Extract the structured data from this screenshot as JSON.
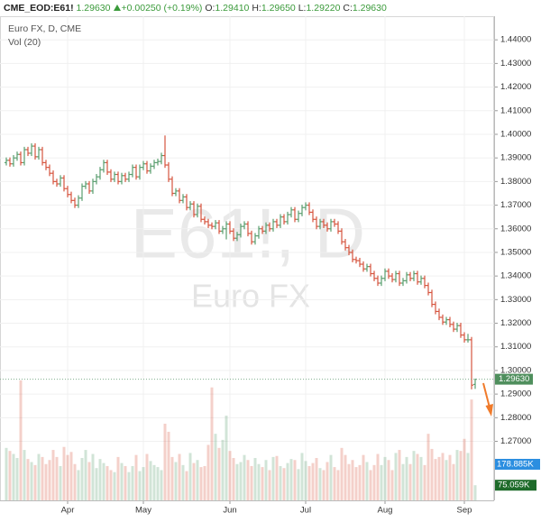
{
  "header": {
    "symbol": "CME_EOD:E61!",
    "last": "1.29630",
    "change": "+0.00250 (+0.19%)",
    "o_label": "O:",
    "o": "1.29410",
    "h_label": "H:",
    "h": "1.29650",
    "l_label": "L:",
    "l": "1.29220",
    "c_label": "C:",
    "c": "1.29630"
  },
  "chart_data": {
    "type": "ohlc",
    "title": "Euro FX, D, CME",
    "watermark": "E61!, D",
    "watermark_subtitle": "Euro FX",
    "up_color": "#5a9e6f",
    "down_color": "#d6553f",
    "grid": true,
    "ylim": [
      1.245,
      1.45
    ],
    "yticks": [
      {
        "value": 1.27,
        "label": "1.27000"
      },
      {
        "value": 1.28,
        "label": "1.28000"
      },
      {
        "value": 1.29,
        "label": "1.29000"
      },
      {
        "value": 1.3,
        "label": "1.30000"
      },
      {
        "value": 1.31,
        "label": "1.31000"
      },
      {
        "value": 1.32,
        "label": "1.32000"
      },
      {
        "value": 1.33,
        "label": "1.33000"
      },
      {
        "value": 1.34,
        "label": "1.34000"
      },
      {
        "value": 1.35,
        "label": "1.35000"
      },
      {
        "value": 1.36,
        "label": "1.36000"
      },
      {
        "value": 1.37,
        "label": "1.37000"
      },
      {
        "value": 1.38,
        "label": "1.38000"
      },
      {
        "value": 1.39,
        "label": "1.39000"
      },
      {
        "value": 1.4,
        "label": "1.40000"
      },
      {
        "value": 1.41,
        "label": "1.41000"
      },
      {
        "value": 1.42,
        "label": "1.42000"
      },
      {
        "value": 1.43,
        "label": "1.43000"
      },
      {
        "value": 1.44,
        "label": "1.44000"
      }
    ],
    "last_price_label": "1.29630",
    "categories": [
      null,
      null,
      null,
      null,
      null,
      null,
      null,
      null,
      null,
      null,
      null,
      null,
      null,
      null,
      null,
      null,
      null,
      "Apr",
      null,
      null,
      null,
      null,
      null,
      null,
      null,
      null,
      null,
      null,
      null,
      null,
      null,
      null,
      null,
      null,
      null,
      null,
      null,
      null,
      "May",
      null,
      null,
      null,
      null,
      null,
      null,
      null,
      null,
      null,
      null,
      null,
      null,
      null,
      null,
      null,
      null,
      null,
      null,
      null,
      null,
      null,
      null,
      null,
      "Jun",
      null,
      null,
      null,
      null,
      null,
      null,
      null,
      null,
      null,
      null,
      null,
      null,
      null,
      null,
      null,
      null,
      null,
      null,
      null,
      null,
      "Jul",
      null,
      null,
      null,
      null,
      null,
      null,
      null,
      null,
      null,
      null,
      null,
      null,
      null,
      null,
      null,
      null,
      null,
      null,
      null,
      null,
      null,
      "Aug",
      null,
      null,
      null,
      null,
      null,
      null,
      null,
      null,
      null,
      null,
      null,
      null,
      null,
      null,
      null,
      null,
      null,
      null,
      null,
      null,
      null,
      "Sep",
      null,
      null,
      null
    ],
    "ohlc": [
      [
        1.388,
        1.3902,
        1.3868,
        1.389
      ],
      [
        1.389,
        1.3902,
        1.3863,
        1.3875
      ],
      [
        1.3875,
        1.3912,
        1.3863,
        1.39
      ],
      [
        1.39,
        1.3927,
        1.3888,
        1.3915
      ],
      [
        1.3915,
        1.3927,
        1.3868,
        1.388
      ],
      [
        1.388,
        1.3947,
        1.3868,
        1.3935
      ],
      [
        1.3935,
        1.3947,
        1.3908,
        1.392
      ],
      [
        1.392,
        1.3962,
        1.3908,
        1.395
      ],
      [
        1.395,
        1.3962,
        1.3893,
        1.3905
      ],
      [
        1.3905,
        1.3947,
        1.3893,
        1.3935
      ],
      [
        1.3935,
        1.3947,
        1.3868,
        1.388
      ],
      [
        1.388,
        1.3892,
        1.3848,
        1.386
      ],
      [
        1.386,
        1.3872,
        1.3823,
        1.3835
      ],
      [
        1.3835,
        1.3847,
        1.3788,
        1.38
      ],
      [
        1.38,
        1.3812,
        1.3778,
        1.379
      ],
      [
        1.379,
        1.3827,
        1.3778,
        1.3815
      ],
      [
        1.3815,
        1.3827,
        1.3758,
        1.377
      ],
      [
        1.377,
        1.3782,
        1.3733,
        1.3745
      ],
      [
        1.3745,
        1.3757,
        1.3708,
        1.372
      ],
      [
        1.372,
        1.3732,
        1.3688,
        1.37
      ],
      [
        1.37,
        1.3742,
        1.3688,
        1.373
      ],
      [
        1.373,
        1.3792,
        1.3718,
        1.378
      ],
      [
        1.378,
        1.3802,
        1.3768,
        1.379
      ],
      [
        1.379,
        1.3802,
        1.3748,
        1.376
      ],
      [
        1.376,
        1.3812,
        1.3748,
        1.38
      ],
      [
        1.38,
        1.3832,
        1.3788,
        1.382
      ],
      [
        1.382,
        1.3862,
        1.3808,
        1.385
      ],
      [
        1.385,
        1.3892,
        1.3838,
        1.388
      ],
      [
        1.388,
        1.3892,
        1.3828,
        1.384
      ],
      [
        1.384,
        1.3852,
        1.3798,
        1.381
      ],
      [
        1.381,
        1.3842,
        1.3798,
        1.383
      ],
      [
        1.383,
        1.3842,
        1.3788,
        1.38
      ],
      [
        1.38,
        1.3837,
        1.3788,
        1.3825
      ],
      [
        1.3825,
        1.3837,
        1.3798,
        1.381
      ],
      [
        1.381,
        1.3842,
        1.3798,
        1.383
      ],
      [
        1.383,
        1.3872,
        1.3818,
        1.386
      ],
      [
        1.386,
        1.3872,
        1.3808,
        1.382
      ],
      [
        1.382,
        1.3872,
        1.3808,
        1.386
      ],
      [
        1.386,
        1.3887,
        1.3848,
        1.3875
      ],
      [
        1.3875,
        1.3887,
        1.3833,
        1.3845
      ],
      [
        1.3845,
        1.3877,
        1.3833,
        1.3865
      ],
      [
        1.3865,
        1.3892,
        1.3853,
        1.388
      ],
      [
        1.388,
        1.3897,
        1.3868,
        1.3885
      ],
      [
        1.3885,
        1.3922,
        1.3873,
        1.391
      ],
      [
        1.391,
        1.3995,
        1.3858,
        1.387
      ],
      [
        1.387,
        1.3882,
        1.3798,
        1.381
      ],
      [
        1.381,
        1.3822,
        1.3738,
        1.375
      ],
      [
        1.375,
        1.3772,
        1.3738,
        1.376
      ],
      [
        1.376,
        1.3772,
        1.3708,
        1.372
      ],
      [
        1.372,
        1.3747,
        1.3708,
        1.3735
      ],
      [
        1.3735,
        1.3747,
        1.3678,
        1.369
      ],
      [
        1.369,
        1.3717,
        1.3678,
        1.3705
      ],
      [
        1.3705,
        1.3717,
        1.3648,
        1.366
      ],
      [
        1.366,
        1.3707,
        1.3648,
        1.3695
      ],
      [
        1.3695,
        1.3707,
        1.3628,
        1.364
      ],
      [
        1.364,
        1.3652,
        1.3618,
        1.363
      ],
      [
        1.363,
        1.3642,
        1.3603,
        1.3615
      ],
      [
        1.3615,
        1.3627,
        1.3598,
        1.361
      ],
      [
        1.361,
        1.3637,
        1.3598,
        1.3625
      ],
      [
        1.3625,
        1.3637,
        1.3578,
        1.359
      ],
      [
        1.359,
        1.3612,
        1.3578,
        1.36
      ],
      [
        1.36,
        1.3632,
        1.3555,
        1.362
      ],
      [
        1.362,
        1.3632,
        1.3578,
        1.359
      ],
      [
        1.359,
        1.3602,
        1.3548,
        1.356
      ],
      [
        1.356,
        1.3587,
        1.3548,
        1.3575
      ],
      [
        1.3575,
        1.3622,
        1.3563,
        1.361
      ],
      [
        1.361,
        1.3632,
        1.3598,
        1.362
      ],
      [
        1.362,
        1.3632,
        1.3568,
        1.358
      ],
      [
        1.358,
        1.3592,
        1.3533,
        1.3545
      ],
      [
        1.3545,
        1.3582,
        1.3533,
        1.357
      ],
      [
        1.357,
        1.3612,
        1.3558,
        1.36
      ],
      [
        1.36,
        1.3612,
        1.3578,
        1.359
      ],
      [
        1.359,
        1.3627,
        1.3578,
        1.3615
      ],
      [
        1.3615,
        1.3627,
        1.3588,
        1.36
      ],
      [
        1.36,
        1.3642,
        1.3588,
        1.363
      ],
      [
        1.363,
        1.3642,
        1.3603,
        1.3615
      ],
      [
        1.3615,
        1.3662,
        1.3603,
        1.365
      ],
      [
        1.365,
        1.3662,
        1.3618,
        1.363
      ],
      [
        1.363,
        1.3672,
        1.3618,
        1.366
      ],
      [
        1.366,
        1.3692,
        1.3648,
        1.368
      ],
      [
        1.368,
        1.3692,
        1.3628,
        1.364
      ],
      [
        1.364,
        1.3677,
        1.3628,
        1.3665
      ],
      [
        1.3665,
        1.3702,
        1.3653,
        1.369
      ],
      [
        1.369,
        1.3712,
        1.3678,
        1.37
      ],
      [
        1.37,
        1.3712,
        1.3658,
        1.367
      ],
      [
        1.367,
        1.3682,
        1.3628,
        1.364
      ],
      [
        1.364,
        1.3652,
        1.3598,
        1.361
      ],
      [
        1.361,
        1.3642,
        1.3598,
        1.363
      ],
      [
        1.363,
        1.3642,
        1.3603,
        1.3615
      ],
      [
        1.3615,
        1.3627,
        1.3588,
        1.36
      ],
      [
        1.36,
        1.3642,
        1.3588,
        1.363
      ],
      [
        1.363,
        1.3642,
        1.3608,
        1.362
      ],
      [
        1.362,
        1.3632,
        1.3578,
        1.359
      ],
      [
        1.359,
        1.3602,
        1.3533,
        1.3545
      ],
      [
        1.3545,
        1.3557,
        1.3508,
        1.352
      ],
      [
        1.352,
        1.3532,
        1.3488,
        1.35
      ],
      [
        1.35,
        1.3512,
        1.3458,
        1.347
      ],
      [
        1.347,
        1.3482,
        1.3453,
        1.3465
      ],
      [
        1.3465,
        1.3477,
        1.3438,
        1.345
      ],
      [
        1.345,
        1.3462,
        1.3418,
        1.343
      ],
      [
        1.343,
        1.3452,
        1.3418,
        1.344
      ],
      [
        1.344,
        1.3452,
        1.3398,
        1.341
      ],
      [
        1.341,
        1.3422,
        1.3378,
        1.339
      ],
      [
        1.339,
        1.3402,
        1.3358,
        1.337
      ],
      [
        1.337,
        1.3402,
        1.3358,
        1.339
      ],
      [
        1.339,
        1.3432,
        1.3378,
        1.342
      ],
      [
        1.342,
        1.3432,
        1.3388,
        1.34
      ],
      [
        1.34,
        1.3412,
        1.3373,
        1.3385
      ],
      [
        1.3385,
        1.3422,
        1.3373,
        1.341
      ],
      [
        1.341,
        1.3422,
        1.3358,
        1.337
      ],
      [
        1.337,
        1.3392,
        1.3358,
        1.338
      ],
      [
        1.338,
        1.3417,
        1.3368,
        1.3405
      ],
      [
        1.3405,
        1.3417,
        1.3378,
        1.339
      ],
      [
        1.339,
        1.3422,
        1.3378,
        1.341
      ],
      [
        1.341,
        1.3422,
        1.3363,
        1.3375
      ],
      [
        1.3375,
        1.3402,
        1.3363,
        1.339
      ],
      [
        1.339,
        1.3402,
        1.3348,
        1.336
      ],
      [
        1.336,
        1.3372,
        1.3318,
        1.333
      ],
      [
        1.333,
        1.3342,
        1.3268,
        1.328
      ],
      [
        1.328,
        1.3292,
        1.3238,
        1.325
      ],
      [
        1.325,
        1.3262,
        1.3213,
        1.3225
      ],
      [
        1.3225,
        1.3237,
        1.3193,
        1.3205
      ],
      [
        1.3205,
        1.3227,
        1.3193,
        1.3215
      ],
      [
        1.3215,
        1.3227,
        1.3183,
        1.3195
      ],
      [
        1.3195,
        1.3207,
        1.3163,
        1.3175
      ],
      [
        1.3175,
        1.3202,
        1.3163,
        1.319
      ],
      [
        1.319,
        1.3202,
        1.3138,
        1.315
      ],
      [
        1.315,
        1.3162,
        1.3118,
        1.313
      ],
      [
        1.313,
        1.3155,
        1.3118,
        1.313
      ],
      [
        1.313,
        1.3142,
        1.292,
        1.2938
      ],
      [
        1.2941,
        1.2965,
        1.2922,
        1.2963
      ]
    ],
    "volume_title": "Vol (20)",
    "vlim": [
      0,
      2400000
    ],
    "volume": [
      260000,
      245000,
      230000,
      210000,
      595000,
      250000,
      205000,
      190000,
      175000,
      230000,
      215000,
      180000,
      200000,
      250000,
      215000,
      170000,
      265000,
      225000,
      240000,
      180000,
      150000,
      210000,
      250000,
      190000,
      230000,
      160000,
      205000,
      185000,
      170000,
      150000,
      140000,
      215000,
      185000,
      170000,
      140000,
      170000,
      225000,
      145000,
      165000,
      230000,
      195000,
      175000,
      165000,
      150000,
      380000,
      340000,
      215000,
      190000,
      230000,
      175000,
      145000,
      235000,
      185000,
      200000,
      165000,
      170000,
      275000,
      560000,
      330000,
      260000,
      300000,
      420000,
      245000,
      210000,
      180000,
      190000,
      225000,
      200000,
      170000,
      210000,
      180000,
      165000,
      200000,
      150000,
      215000,
      220000,
      170000,
      160000,
      185000,
      205000,
      200000,
      155000,
      235000,
      195000,
      170000,
      185000,
      210000,
      160000,
      150000,
      190000,
      225000,
      165000,
      150000,
      260000,
      225000,
      180000,
      200000,
      165000,
      175000,
      225000,
      190000,
      150000,
      175000,
      230000,
      175000,
      215000,
      200000,
      150000,
      235000,
      250000,
      180000,
      215000,
      180000,
      245000,
      230000,
      215000,
      175000,
      330000,
      255000,
      205000,
      215000,
      235000,
      200000,
      225000,
      180000,
      250000,
      245000,
      305000,
      235000,
      500000,
      75059
    ],
    "last_volume_label": "75.059K",
    "volume_ma_last": 178885,
    "volume_ma_last_label": "178.885K"
  }
}
